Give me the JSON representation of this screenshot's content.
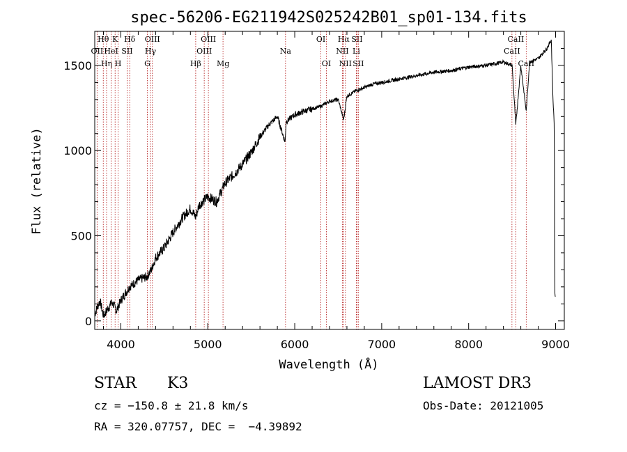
{
  "chart_data": {
    "type": "line",
    "title": "spec-56206-EG211942S025242B01_sp01-134.fits",
    "xlabel": "Wavelength (Å)",
    "ylabel": "Flux (relative)",
    "xlim": [
      3700,
      9100
    ],
    "ylim": [
      -50,
      1700
    ],
    "x_ticks": [
      "4000",
      "5000",
      "6000",
      "7000",
      "8000",
      "9000"
    ],
    "y_ticks": [
      "0",
      "500",
      "1000",
      "1500"
    ],
    "series": [
      {
        "name": "flux",
        "x": [
          3700,
          3760,
          3800,
          3850,
          3900,
          3950,
          4000,
          4100,
          4200,
          4300,
          4350,
          4400,
          4500,
          4600,
          4700,
          4800,
          4861,
          4900,
          5000,
          5100,
          5200,
          5300,
          5400,
          5500,
          5600,
          5700,
          5800,
          5890,
          5900,
          6000,
          6100,
          6200,
          6300,
          6400,
          6500,
          6563,
          6600,
          6700,
          6800,
          6900,
          7000,
          7200,
          7400,
          7600,
          7800,
          8000,
          8200,
          8400,
          8500,
          8542,
          8600,
          8662,
          8700,
          8800,
          8900,
          8950,
          8970,
          8985,
          8990,
          9000
        ],
        "y": [
          40,
          120,
          30,
          70,
          110,
          60,
          120,
          200,
          240,
          260,
          300,
          370,
          430,
          520,
          600,
          660,
          610,
          680,
          730,
          700,
          810,
          860,
          920,
          990,
          1080,
          1150,
          1200,
          1050,
          1170,
          1210,
          1230,
          1245,
          1260,
          1290,
          1300,
          1180,
          1320,
          1350,
          1370,
          1390,
          1400,
          1420,
          1440,
          1460,
          1470,
          1490,
          1500,
          1520,
          1500,
          1150,
          1500,
          1230,
          1520,
          1540,
          1600,
          1650,
          1300,
          1150,
          180,
          120
        ]
      }
    ],
    "lines": [
      {
        "name": "Hθ",
        "x": 3798,
        "row": 1
      },
      {
        "name": "OII",
        "x": 3727,
        "row": 2
      },
      {
        "name": "Hη",
        "x": 3836,
        "row": 3
      },
      {
        "name": "K",
        "x": 3934,
        "row": 1
      },
      {
        "name": "HeI",
        "x": 3889,
        "row": 2
      },
      {
        "name": "H",
        "x": 3969,
        "row": 3
      },
      {
        "name": "Hδ",
        "x": 4102,
        "row": 1
      },
      {
        "name": "SII",
        "x": 4072,
        "row": 2
      },
      {
        "name": "OIII",
        "x": 4363,
        "row": 1
      },
      {
        "name": "Hγ",
        "x": 4341,
        "row": 2
      },
      {
        "name": "G",
        "x": 4305,
        "row": 3
      },
      {
        "name": "Hβ",
        "x": 4861,
        "row": 3
      },
      {
        "name": "OIII",
        "x": 5007,
        "row": 1
      },
      {
        "name": "OIII",
        "x": 4959,
        "row": 2
      },
      {
        "name": "Mg",
        "x": 5175,
        "row": 3
      },
      {
        "name": "Na",
        "x": 5894,
        "row": 2
      },
      {
        "name": "OI",
        "x": 6300,
        "row": 1
      },
      {
        "name": "OI",
        "x": 6364,
        "row": 3
      },
      {
        "name": "Hα",
        "x": 6563,
        "row": 1
      },
      {
        "name": "NII",
        "x": 6548,
        "row": 2
      },
      {
        "name": "NII",
        "x": 6583,
        "row": 3
      },
      {
        "name": "SII",
        "x": 6716,
        "row": 1
      },
      {
        "name": "Li",
        "x": 6708,
        "row": 2
      },
      {
        "name": "SII",
        "x": 6731,
        "row": 3
      },
      {
        "name": "CaII",
        "x": 8542,
        "row": 1
      },
      {
        "name": "CaII",
        "x": 8498,
        "row": 2
      },
      {
        "name": "CaII",
        "x": 8662,
        "row": 3
      }
    ]
  },
  "info": {
    "object_class": "STAR",
    "subclass": "K3",
    "survey": "LAMOST DR3",
    "cz": "cz = −150.8 ± 21.8 km/s",
    "obs_date": "Obs-Date: 20121005",
    "radec": "RA = 320.07757, DEC =  −4.39892"
  },
  "colors": {
    "line_markers": "#b01010",
    "spectrum": "#000000",
    "axes": "#000000"
  }
}
